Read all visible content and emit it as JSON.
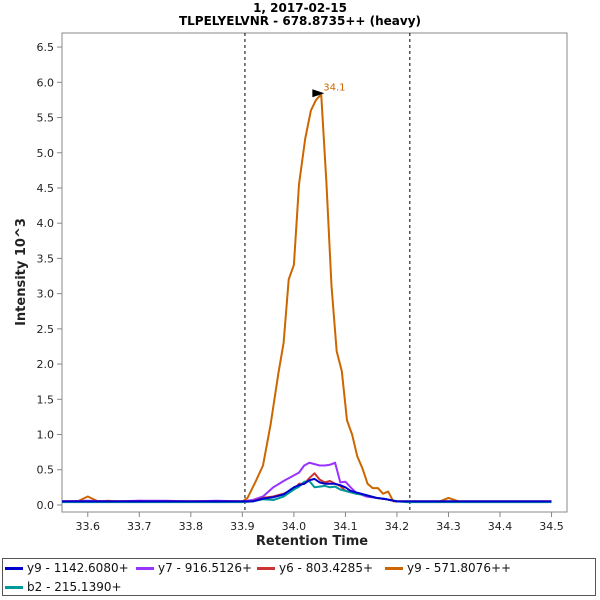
{
  "chart_data": {
    "type": "line",
    "title": "1, 2017-02-15",
    "subtitle": "TLPELYELVNR - 678.8735++ (heavy)",
    "xlabel": "Retention Time",
    "ylabel": "Intensity 10^3",
    "xlim": [
      33.55,
      34.53
    ],
    "ylim": [
      -0.1,
      6.7
    ],
    "x_ticks": [
      "33.6",
      "33.7",
      "33.8",
      "33.9",
      "34.0",
      "34.1",
      "34.2",
      "34.3",
      "34.4",
      "34.5"
    ],
    "x_tick_values": [
      33.6,
      33.7,
      33.8,
      33.9,
      34.0,
      34.1,
      34.2,
      34.3,
      34.4,
      34.5
    ],
    "y_ticks": [
      "0.0",
      "0.5",
      "1.0",
      "1.5",
      "2.0",
      "2.5",
      "3.0",
      "3.5",
      "4.0",
      "4.5",
      "5.0",
      "5.5",
      "6.0",
      "6.5"
    ],
    "y_tick_values": [
      0.0,
      0.5,
      1.0,
      1.5,
      2.0,
      2.5,
      3.0,
      3.5,
      4.0,
      4.5,
      5.0,
      5.5,
      6.0,
      6.5
    ],
    "integration_bounds": [
      33.905,
      34.225
    ],
    "peak_annotation": {
      "label": "34.1",
      "x": 34.063,
      "y": 5.83,
      "color": "#cc6600"
    },
    "series": [
      {
        "name": "y9 - 571.8076++",
        "color": "#cc6600",
        "x": [
          33.55,
          33.58,
          33.6,
          33.62,
          33.64,
          33.66,
          33.68,
          33.7,
          33.72,
          33.74,
          33.76,
          33.78,
          33.8,
          33.82,
          33.84,
          33.86,
          33.88,
          33.9,
          33.91,
          33.925,
          33.94,
          33.955,
          33.97,
          33.98,
          33.99,
          34.0,
          34.01,
          34.022,
          34.033,
          34.043,
          34.053,
          34.063,
          34.073,
          34.083,
          34.093,
          34.103,
          34.113,
          34.123,
          34.133,
          34.143,
          34.153,
          34.163,
          34.173,
          34.183,
          34.193,
          34.203,
          34.213,
          34.223,
          34.233,
          34.243,
          34.253,
          34.263,
          34.273,
          34.283,
          34.3,
          34.32,
          34.34,
          34.36,
          34.38,
          34.4,
          34.42,
          34.44,
          34.46,
          34.48,
          34.5
        ],
        "values": [
          0.05,
          0.05,
          0.12,
          0.05,
          0.06,
          0.05,
          0.05,
          0.06,
          0.05,
          0.05,
          0.05,
          0.05,
          0.05,
          0.05,
          0.05,
          0.05,
          0.05,
          0.05,
          0.1,
          0.32,
          0.56,
          1.15,
          1.87,
          2.3,
          3.2,
          3.41,
          4.55,
          5.2,
          5.6,
          5.75,
          5.83,
          4.58,
          3.11,
          2.18,
          1.9,
          1.2,
          1.0,
          0.69,
          0.52,
          0.3,
          0.24,
          0.24,
          0.16,
          0.19,
          0.05,
          0.05,
          0.05,
          0.05,
          0.05,
          0.05,
          0.05,
          0.05,
          0.05,
          0.05,
          0.1,
          0.05,
          0.05,
          0.05,
          0.05,
          0.05,
          0.05,
          0.05,
          0.05,
          0.05,
          0.05
        ]
      },
      {
        "name": "y7 - 916.5126+",
        "color": "#9933ff",
        "x": [
          33.55,
          33.6,
          33.65,
          33.7,
          33.75,
          33.8,
          33.85,
          33.9,
          33.92,
          33.94,
          33.96,
          33.98,
          34.0,
          34.01,
          34.02,
          34.03,
          34.04,
          34.05,
          34.06,
          34.07,
          34.08,
          34.09,
          34.1,
          34.11,
          34.12,
          34.13,
          34.14,
          34.16,
          34.18,
          34.2,
          34.22,
          34.25,
          34.3,
          34.35,
          34.4,
          34.45,
          34.5
        ],
        "values": [
          0.05,
          0.06,
          0.05,
          0.06,
          0.06,
          0.05,
          0.06,
          0.05,
          0.07,
          0.12,
          0.25,
          0.34,
          0.42,
          0.46,
          0.56,
          0.6,
          0.58,
          0.56,
          0.56,
          0.57,
          0.6,
          0.32,
          0.33,
          0.25,
          0.18,
          0.15,
          0.12,
          0.1,
          0.08,
          0.05,
          0.05,
          0.05,
          0.05,
          0.05,
          0.05,
          0.05,
          0.05
        ]
      },
      {
        "name": "y6 - 803.4285+",
        "color": "#cc3333",
        "x": [
          33.55,
          33.6,
          33.65,
          33.7,
          33.75,
          33.8,
          33.85,
          33.9,
          33.92,
          33.94,
          33.96,
          33.98,
          34.0,
          34.01,
          34.02,
          34.03,
          34.04,
          34.05,
          34.06,
          34.07,
          34.08,
          34.09,
          34.1,
          34.11,
          34.12,
          34.14,
          34.16,
          34.18,
          34.2,
          34.22,
          34.25,
          34.3,
          34.35,
          34.4,
          34.45,
          34.5
        ],
        "values": [
          0.05,
          0.05,
          0.05,
          0.05,
          0.05,
          0.05,
          0.05,
          0.05,
          0.05,
          0.1,
          0.12,
          0.16,
          0.22,
          0.3,
          0.3,
          0.38,
          0.45,
          0.36,
          0.32,
          0.34,
          0.3,
          0.27,
          0.2,
          0.18,
          0.18,
          0.14,
          0.1,
          0.08,
          0.05,
          0.05,
          0.05,
          0.05,
          0.05,
          0.05,
          0.05,
          0.05
        ]
      },
      {
        "name": "b2 - 215.1390+",
        "color": "#009999",
        "x": [
          33.55,
          33.6,
          33.65,
          33.7,
          33.75,
          33.8,
          33.85,
          33.9,
          33.92,
          33.94,
          33.96,
          33.98,
          34.0,
          34.01,
          34.02,
          34.03,
          34.04,
          34.05,
          34.06,
          34.07,
          34.08,
          34.09,
          34.1,
          34.11,
          34.12,
          34.14,
          34.16,
          34.18,
          34.2,
          34.22,
          34.25,
          34.3,
          34.35,
          34.4,
          34.45,
          34.5
        ],
        "values": [
          0.04,
          0.04,
          0.04,
          0.04,
          0.04,
          0.04,
          0.04,
          0.04,
          0.05,
          0.08,
          0.07,
          0.12,
          0.22,
          0.26,
          0.33,
          0.34,
          0.25,
          0.26,
          0.27,
          0.25,
          0.26,
          0.22,
          0.2,
          0.18,
          0.16,
          0.14,
          0.1,
          0.08,
          0.05,
          0.04,
          0.04,
          0.04,
          0.04,
          0.04,
          0.04,
          0.04
        ]
      },
      {
        "name": "y9 - 1142.6080+",
        "color": "#0000cc",
        "x": [
          33.55,
          33.6,
          33.65,
          33.7,
          33.75,
          33.8,
          33.85,
          33.9,
          33.92,
          33.94,
          33.96,
          33.98,
          34.0,
          34.01,
          34.02,
          34.03,
          34.04,
          34.05,
          34.06,
          34.07,
          34.08,
          34.09,
          34.1,
          34.11,
          34.12,
          34.14,
          34.16,
          34.18,
          34.2,
          34.22,
          34.25,
          34.3,
          34.35,
          34.4,
          34.45,
          34.5
        ],
        "values": [
          0.05,
          0.05,
          0.05,
          0.05,
          0.05,
          0.05,
          0.05,
          0.05,
          0.05,
          0.09,
          0.11,
          0.15,
          0.25,
          0.28,
          0.3,
          0.35,
          0.37,
          0.32,
          0.3,
          0.3,
          0.3,
          0.28,
          0.25,
          0.2,
          0.18,
          0.14,
          0.1,
          0.08,
          0.05,
          0.05,
          0.05,
          0.05,
          0.05,
          0.05,
          0.05,
          0.05
        ]
      }
    ],
    "legend": [
      {
        "label": "y9 - 1142.6080+",
        "color": "#0000cc"
      },
      {
        "label": "y7 - 916.5126+",
        "color": "#9933ff"
      },
      {
        "label": "y6 - 803.4285+",
        "color": "#cc3333"
      },
      {
        "label": "y9 - 571.8076++",
        "color": "#cc6600"
      },
      {
        "label": "b2 - 215.1390+",
        "color": "#009999"
      }
    ]
  }
}
